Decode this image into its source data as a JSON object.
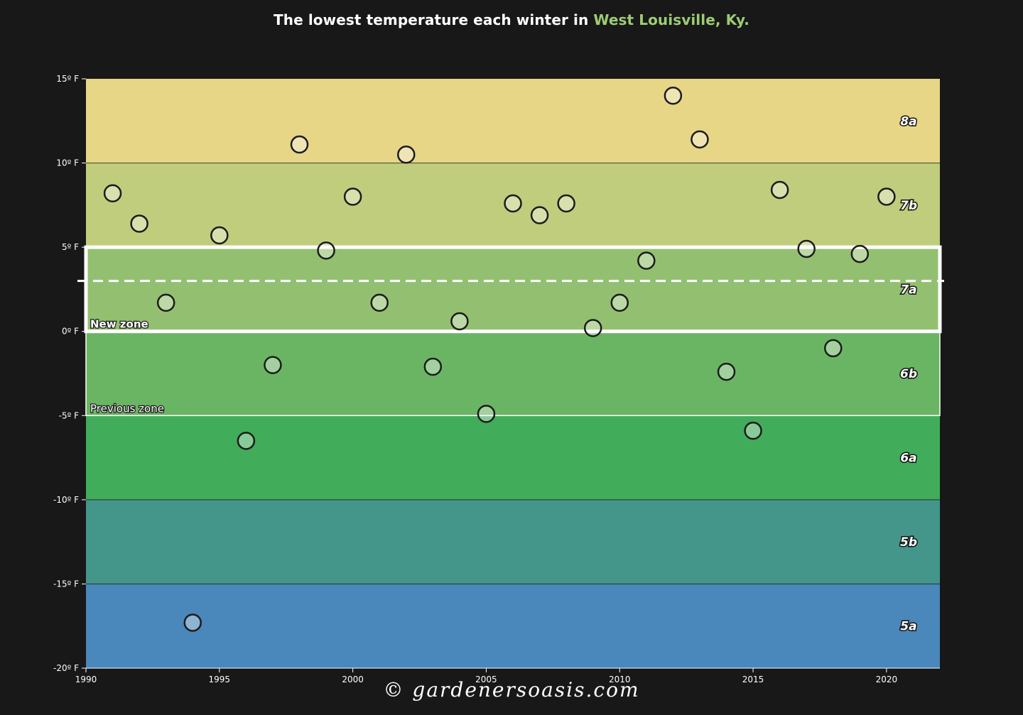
{
  "page": {
    "title_main": "The lowest temperature each winter in ",
    "title_place": "West Louisville, Ky.",
    "watermark": "© gardenersoasis.com"
  },
  "chart_data": {
    "type": "scatter",
    "title": "The lowest temperature each winter in West Louisville, Ky.",
    "xlabel": "",
    "ylabel": "",
    "xlim": [
      1990,
      2022
    ],
    "ylim": [
      -20,
      15
    ],
    "x_ticks": [
      1990,
      1995,
      2000,
      2005,
      2010,
      2015,
      2020
    ],
    "y_ticks": [
      15,
      10,
      5,
      0,
      -5,
      -10,
      -15,
      -20
    ],
    "y_tick_labels": [
      "15º F",
      "10º F",
      "5º F",
      "0º F",
      "-5º F",
      "-10º F",
      "-15º F",
      "-20º F"
    ],
    "grid": false,
    "legend": "none",
    "zones": [
      {
        "label": "8a",
        "min": 10,
        "max": 15,
        "color": "#e6d686"
      },
      {
        "label": "7b",
        "min": 5,
        "max": 10,
        "color": "#c0cd7c"
      },
      {
        "label": "7a",
        "min": 0,
        "max": 5,
        "color": "#93c070"
      },
      {
        "label": "6b",
        "min": -5,
        "max": 0,
        "color": "#6ab564"
      },
      {
        "label": "6a",
        "min": -10,
        "max": -5,
        "color": "#41ac5a"
      },
      {
        "label": "5b",
        "min": -15,
        "max": -10,
        "color": "#44968a"
      },
      {
        "label": "5a",
        "min": -20,
        "max": -15,
        "color": "#4a87ba"
      }
    ],
    "new_zone": {
      "label": "New zone",
      "min": 0,
      "max": 5,
      "line_at": 3
    },
    "previous_zone": {
      "label": "Previous zone",
      "min": -5,
      "max": 0
    },
    "points": [
      {
        "x": 1991,
        "y": 8.2
      },
      {
        "x": 1992,
        "y": 6.4
      },
      {
        "x": 1993,
        "y": 1.7
      },
      {
        "x": 1994,
        "y": -17.3
      },
      {
        "x": 1995,
        "y": 5.7
      },
      {
        "x": 1996,
        "y": -6.5
      },
      {
        "x": 1997,
        "y": -2.0
      },
      {
        "x": 1998,
        "y": 11.1
      },
      {
        "x": 1999,
        "y": 4.8
      },
      {
        "x": 2000,
        "y": 8.0
      },
      {
        "x": 2001,
        "y": 1.7
      },
      {
        "x": 2002,
        "y": 10.5
      },
      {
        "x": 2003,
        "y": -2.1
      },
      {
        "x": 2004,
        "y": 0.6
      },
      {
        "x": 2005,
        "y": -4.9
      },
      {
        "x": 2006,
        "y": 7.6
      },
      {
        "x": 2007,
        "y": 6.9
      },
      {
        "x": 2008,
        "y": 7.6
      },
      {
        "x": 2009,
        "y": 0.2
      },
      {
        "x": 2010,
        "y": 1.7
      },
      {
        "x": 2011,
        "y": 4.2
      },
      {
        "x": 2012,
        "y": 14.0
      },
      {
        "x": 2013,
        "y": 11.4
      },
      {
        "x": 2014,
        "y": -2.4
      },
      {
        "x": 2015,
        "y": -5.9
      },
      {
        "x": 2016,
        "y": 8.4
      },
      {
        "x": 2017,
        "y": 4.9
      },
      {
        "x": 2018,
        "y": -1.0
      },
      {
        "x": 2019,
        "y": 4.6
      },
      {
        "x": 2020,
        "y": 8.0
      }
    ]
  }
}
